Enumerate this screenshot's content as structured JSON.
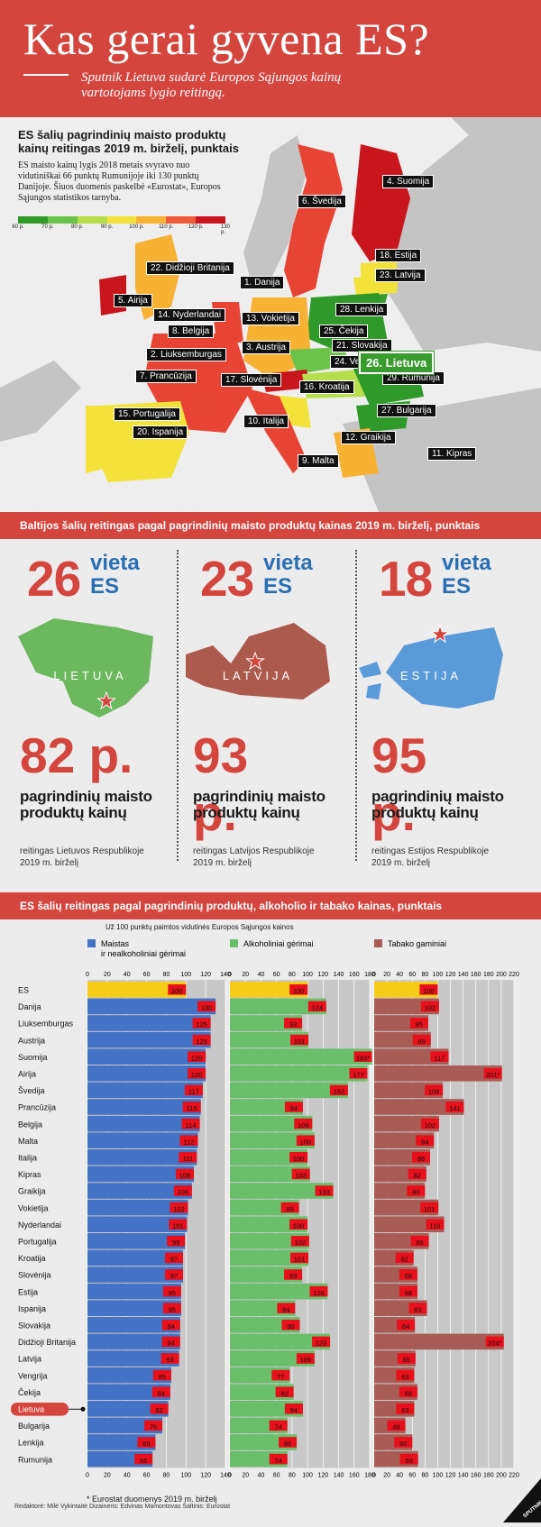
{
  "header": {
    "title": "Kas gerai gyvena ES?",
    "subtitle": "Sputnik Lietuva sudarė Europos Sąjungos kainų vartotojams lygio reitingą."
  },
  "map": {
    "title": "ES šalių pagrindinių maisto produktų kainų reitingas 2019 m. birželį, punktais",
    "description": "ES maisto kainų lygis 2018 metais svyravo nuo vidutiniškai 66 punktų Rumunijoje iki 130 punktų Danijoje. Šiuos duomenis paskelbė «Eurostat», Europos Sąjungos statistikos tarnyba.",
    "scale": {
      "colors": [
        "#2f9a2a",
        "#6cc34a",
        "#b7de4a",
        "#f3e23a",
        "#f7b234",
        "#ef5a3a",
        "#c8161c"
      ],
      "ticks": [
        "60 p.",
        "70 p.",
        "80 p.",
        "90 p.",
        "100 p.",
        "110 p.",
        "120 p.",
        "130 p."
      ]
    },
    "labels": [
      "22. Didžioji Britanija",
      "5. Airija",
      "1. Danija",
      "6. Švedija",
      "4. Suomija",
      "18. Estija",
      "23. Latvija",
      "28. Lenkija",
      "14. Nyderlandai",
      "8. Belgija",
      "13. Vokietija",
      "25. Čekija",
      "21. Slovakija",
      "2. Liuksemburgas",
      "3. Austrija",
      "24. Vengrija",
      "7. Prancūzija",
      "17. Slovėnija",
      "16. Kroatija",
      "29. Rumunija",
      "27. Bulgarija",
      "15. Portugalija",
      "10. Italija",
      "20. Ispanija",
      "12. Graikija",
      "9. Malta",
      "11. Kipras"
    ],
    "highlight": "26. Lietuva"
  },
  "baltic": {
    "title": "Baltijos šalių reitingas pagal pagrindinių maisto produktų kainas 2019 m. birželį, punktais",
    "countries": [
      {
        "rank": "26",
        "vieta": "vieta",
        "es": "ES",
        "name": "LIETUVA",
        "price": "82 p.",
        "desc": "pagrindinių maisto produktų kainų",
        "source": "reitingas Lietuvos Respublikoje 2019 m. birželį",
        "color": "#6cb85e"
      },
      {
        "rank": "23",
        "vieta": "vieta",
        "es": "ES",
        "name": "LATVIJA",
        "price": "93 p.",
        "desc": "pagrindinių maisto produktų kainų",
        "source": "reitingas Latvijos Respublikoje 2019 m. birželį",
        "color": "#ad5a4e"
      },
      {
        "rank": "18",
        "vieta": "vieta",
        "es": "ES",
        "name": "ESTIJA",
        "price": "95 p.",
        "desc": "pagrindinių maisto produktų kainų",
        "source": "reitingas Estijos Respublikoje 2019 m. birželį",
        "color": "#5b9ad8"
      }
    ]
  },
  "chart_section": {
    "title": "ES šalių reitingas pagal pagrindinių produktų, alkoholio ir tabako kainas, punktais",
    "note": "Už 100 punktų paimtos vidutinės Europos Sąjungos kainos",
    "footnote": "* Eurostat duomenys 2019 m. birželį",
    "highlight_row": "Lietuva"
  },
  "chart_data": {
    "type": "bar",
    "categories": [
      "ES",
      "Danija",
      "Liuksemburgas",
      "Austrija",
      "Suomija",
      "Airija",
      "Švedija",
      "Prancūzija",
      "Belgija",
      "Malta",
      "Italija",
      "Kipras",
      "Graikija",
      "Vokietija",
      "Nyderlandai",
      "Portugalija",
      "Kroatija",
      "Slovėnija",
      "Estija",
      "Ispanija",
      "Slovakija",
      "Didžioji Britanija",
      "Latvija",
      "Vengrija",
      "Čekija",
      "Lietuva",
      "Bulgarija",
      "Lenkija",
      "Rumunija"
    ],
    "series": [
      {
        "name": "Maistas ir nealkoholiniai gėrimai",
        "color": "#4472c4",
        "axis_max": 140,
        "ticks": [
          "0",
          "20",
          "40",
          "60",
          "80",
          "100",
          "120",
          "140"
        ],
        "values": [
          100,
          130,
          125,
          125,
          120,
          120,
          117,
          115,
          114,
          112,
          111,
          108,
          106,
          102,
          101,
          99,
          97,
          97,
          95,
          95,
          94,
          94,
          93,
          85,
          84,
          82,
          76,
          69,
          66
        ]
      },
      {
        "name": "Alkoholiniai gėrimai",
        "color": "#6bbf6b",
        "axis_max": 180,
        "ticks": [
          "0",
          "20",
          "40",
          "60",
          "80",
          "100",
          "120",
          "140",
          "160",
          "180"
        ],
        "values": [
          100,
          124,
          93,
          101,
          183,
          177,
          152,
          94,
          106,
          109,
          100,
          103,
          133,
          89,
          100,
          102,
          101,
          93,
          126,
          84,
          90,
          129,
          109,
          77,
          82,
          94,
          74,
          86,
          74
        ]
      },
      {
        "name": "Tabako gaminiai",
        "color": "#a85c56",
        "axis_max": 220,
        "ticks": [
          "0",
          "20",
          "40",
          "60",
          "80",
          "100",
          "120",
          "140",
          "160",
          "180",
          "200",
          "220"
        ],
        "values": [
          100,
          102,
          85,
          89,
          117,
          201,
          108,
          141,
          102,
          94,
          88,
          82,
          80,
          101,
          110,
          86,
          62,
          68,
          68,
          83,
          64,
          204,
          65,
          63,
          68,
          63,
          49,
          60,
          69
        ]
      }
    ],
    "value_labels": {
      "food": [
        "100",
        "130",
        "125",
        "125",
        "120",
        "120",
        "117",
        "115",
        "114",
        "112",
        "111",
        "108",
        "106",
        "102",
        "101",
        "99",
        "97",
        "97",
        "95",
        "95",
        "94",
        "94",
        "93",
        "85",
        "84",
        "82",
        "76",
        "69",
        "66"
      ],
      "alcohol": [
        "100",
        "124",
        "93",
        "101",
        "183*",
        "177",
        "152",
        "94",
        "106",
        "109",
        "100",
        "103",
        "133",
        "89",
        "100",
        "102",
        "101",
        "93",
        "126",
        "84",
        "90",
        "129",
        "109",
        "77",
        "82",
        "94",
        "74",
        "86",
        "74"
      ],
      "tobacco": [
        "100",
        "102",
        "85",
        "89",
        "117",
        "201*",
        "108",
        "141",
        "102",
        "94",
        "88",
        "82",
        "80",
        "101",
        "110",
        "86",
        "62",
        "68",
        "68",
        "83",
        "64",
        "204*",
        "65",
        "63",
        "68",
        "63",
        "49",
        "60",
        "69"
      ]
    },
    "legend_labels": [
      "Maistas",
      "ir nealkoholiniai gėrimai",
      "Alkoholiniai gėrimai",
      "Tabako gaminiai"
    ],
    "es_color": "#f5cc17"
  },
  "footer": {
    "text": "Redaktorė: Milė Vykintaitė Dizaineris: Edvinas Mamontovas Šaltinis: Eurostat",
    "logo": "SPUTNIK"
  }
}
